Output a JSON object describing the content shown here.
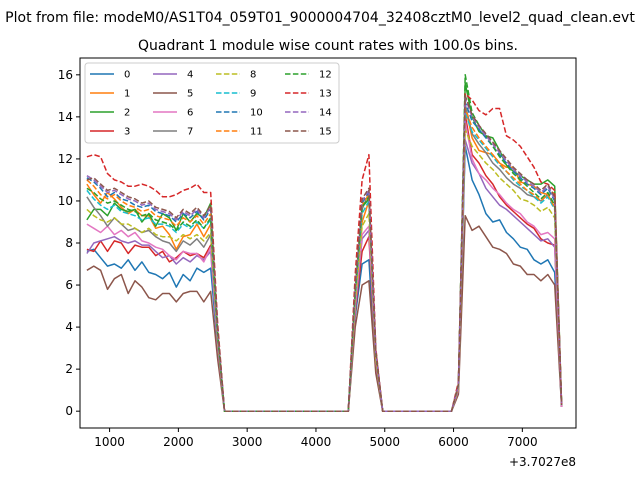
{
  "chart_data": {
    "type": "line",
    "suptitle": "Plot from file: modeM0/AS1T04_059T01_9000004704_32408cztM0_level2_quad_clean.evt",
    "title": "Quadrant 1 module wise count rates with 100.0s bins.",
    "xlabel": "",
    "ylabel": "",
    "x_offset_label": "+3.7027e8",
    "xlim": [
      570,
      7780
    ],
    "ylim": [
      -0.8,
      16.8
    ],
    "xticks": [
      1000,
      2000,
      3000,
      4000,
      5000,
      6000,
      7000
    ],
    "xtick_labels": [
      "1000",
      "2000",
      "3000",
      "4000",
      "5000",
      "6000",
      "7000"
    ],
    "yticks": [
      0,
      2,
      4,
      6,
      8,
      10,
      12,
      14,
      16
    ],
    "ytick_labels": [
      "0",
      "2",
      "4",
      "6",
      "8",
      "10",
      "12",
      "14",
      "16"
    ],
    "legend_location": "upper-left",
    "x": [
      670,
      770,
      870,
      970,
      1070,
      1170,
      1270,
      1370,
      1470,
      1570,
      1670,
      1770,
      1870,
      1970,
      2070,
      2170,
      2270,
      2370,
      2470,
      2570,
      2670,
      2770,
      2870,
      2970,
      3070,
      3170,
      3270,
      3370,
      3470,
      3570,
      3670,
      3770,
      3870,
      3970,
      4070,
      4170,
      4270,
      4370,
      4470,
      4570,
      4670,
      4770,
      4870,
      4970,
      5070,
      5170,
      5270,
      5370,
      5470,
      5570,
      5670,
      5770,
      5870,
      5970,
      6070,
      6170,
      6270,
      6370,
      6470,
      6570,
      6670,
      6770,
      6870,
      6970,
      7070,
      7170,
      7270,
      7370,
      7470,
      7570
    ],
    "series": [
      {
        "name": "0",
        "color": "#1f77b4",
        "dash": "solid",
        "values": [
          7.6,
          7.7,
          7.3,
          6.9,
          7.0,
          6.8,
          7.2,
          6.7,
          7.1,
          6.6,
          6.5,
          6.3,
          6.6,
          5.9,
          6.5,
          6.2,
          6.8,
          6.6,
          6.8,
          3.0,
          0,
          0,
          0,
          0,
          0,
          0,
          0,
          0,
          0,
          0,
          0,
          0,
          0,
          0,
          0,
          0,
          0,
          0,
          0,
          4.5,
          7.0,
          7.2,
          2.0,
          0,
          0,
          0,
          0,
          0,
          0,
          0,
          0,
          0,
          0,
          0,
          0.9,
          12.6,
          11.0,
          10.3,
          9.4,
          9.0,
          9.1,
          8.5,
          8.2,
          7.8,
          7.7,
          7.2,
          7.0,
          7.2,
          6.6,
          0.2
        ]
      },
      {
        "name": "1",
        "color": "#ff7f0e",
        "dash": "solid",
        "values": [
          10.8,
          10.3,
          9.9,
          10.4,
          10.1,
          9.7,
          9.4,
          9.6,
          9.3,
          9.3,
          8.7,
          8.8,
          8.4,
          7.7,
          8.3,
          8.4,
          8.9,
          8.3,
          8.9,
          3.5,
          0,
          0,
          0,
          0,
          0,
          0,
          0,
          0,
          0,
          0,
          0,
          0,
          0,
          0,
          0,
          0,
          0,
          0,
          0,
          5.3,
          9.0,
          10.0,
          2.6,
          0,
          0,
          0,
          0,
          0,
          0,
          0,
          0,
          0,
          0,
          0,
          1.1,
          14.5,
          13.0,
          12.4,
          12.3,
          12.2,
          11.8,
          11.6,
          11.6,
          10.9,
          10.8,
          10.7,
          10.4,
          10.3,
          10.4,
          0.3
        ]
      },
      {
        "name": "2",
        "color": "#2ca02c",
        "dash": "solid",
        "values": [
          9.1,
          9.6,
          9.6,
          9.3,
          9.9,
          9.6,
          9.5,
          9.6,
          9.0,
          9.4,
          8.8,
          9.4,
          9.2,
          8.6,
          9.4,
          9.0,
          9.4,
          9.2,
          9.9,
          3.8,
          0,
          0,
          0,
          0,
          0,
          0,
          0,
          0,
          0,
          0,
          0,
          0,
          0,
          0,
          0,
          0,
          0,
          0,
          0,
          5.7,
          9.7,
          10.1,
          2.8,
          0,
          0,
          0,
          0,
          0,
          0,
          0,
          0,
          0,
          0,
          0,
          1.2,
          15.6,
          14.0,
          13.3,
          13.1,
          13.0,
          12.4,
          11.7,
          11.4,
          11.2,
          11.0,
          10.8,
          10.8,
          11.0,
          10.7,
          0.3
        ]
      },
      {
        "name": "3",
        "color": "#d62728",
        "dash": "solid",
        "values": [
          7.7,
          7.6,
          8.1,
          7.6,
          8.1,
          8.0,
          7.5,
          7.9,
          7.8,
          7.8,
          7.4,
          7.6,
          7.1,
          7.3,
          7.6,
          7.4,
          7.5,
          7.3,
          7.9,
          3.2,
          0,
          0,
          0,
          0,
          0,
          0,
          0,
          0,
          0,
          0,
          0,
          0,
          0,
          0,
          0,
          0,
          0,
          0,
          0,
          4.7,
          7.6,
          8.3,
          2.2,
          0,
          0,
          0,
          0,
          0,
          0,
          0,
          0,
          0,
          0,
          0,
          1.0,
          14.1,
          12.2,
          11.8,
          11.2,
          10.8,
          10.2,
          9.8,
          9.5,
          9.2,
          8.9,
          8.7,
          8.2,
          8.0,
          7.9,
          0.2
        ]
      },
      {
        "name": "4",
        "color": "#9467bd",
        "dash": "solid",
        "values": [
          7.5,
          8.0,
          8.1,
          8.2,
          8.3,
          8.1,
          8.0,
          8.1,
          7.9,
          7.9,
          7.6,
          7.3,
          7.4,
          7.0,
          7.3,
          7.1,
          7.4,
          7.2,
          7.6,
          3.1,
          0,
          0,
          0,
          0,
          0,
          0,
          0,
          0,
          0,
          0,
          0,
          0,
          0,
          0,
          0,
          0,
          0,
          0,
          0,
          4.8,
          8.2,
          8.6,
          2.3,
          0,
          0,
          0,
          0,
          0,
          0,
          0,
          0,
          0,
          0,
          0,
          1.0,
          12.9,
          11.8,
          11.3,
          10.6,
          10.2,
          9.8,
          9.6,
          9.3,
          9.0,
          8.7,
          8.4,
          8.1,
          8.2,
          7.8,
          0.2
        ]
      },
      {
        "name": "5",
        "color": "#8c564b",
        "dash": "solid",
        "values": [
          6.7,
          6.9,
          6.7,
          5.8,
          6.3,
          6.5,
          5.6,
          6.2,
          5.9,
          5.4,
          5.3,
          5.6,
          5.6,
          5.2,
          5.6,
          5.7,
          5.7,
          5.2,
          5.7,
          2.5,
          0,
          0,
          0,
          0,
          0,
          0,
          0,
          0,
          0,
          0,
          0,
          0,
          0,
          0,
          0,
          0,
          0,
          0,
          0,
          4.0,
          6.0,
          6.2,
          1.8,
          0,
          0,
          0,
          0,
          0,
          0,
          0,
          0,
          0,
          0,
          0,
          0.8,
          9.3,
          8.6,
          8.8,
          8.3,
          7.8,
          7.7,
          7.5,
          7.0,
          6.9,
          6.5,
          6.5,
          6.2,
          6.5,
          6.0,
          0.2
        ]
      },
      {
        "name": "6",
        "color": "#e377c2",
        "dash": "solid",
        "values": [
          8.9,
          8.7,
          8.5,
          8.8,
          8.4,
          8.6,
          8.3,
          8.5,
          8.1,
          8.0,
          7.8,
          7.7,
          7.4,
          7.2,
          7.6,
          7.5,
          7.5,
          7.1,
          7.8,
          3.2,
          0,
          0,
          0,
          0,
          0,
          0,
          0,
          0,
          0,
          0,
          0,
          0,
          0,
          0,
          0,
          0,
          0,
          0,
          0,
          5.0,
          8.4,
          8.8,
          2.4,
          0,
          0,
          0,
          0,
          0,
          0,
          0,
          0,
          0,
          0,
          0,
          1.0,
          13.8,
          12.0,
          11.3,
          11.0,
          10.6,
          10.3,
          9.9,
          9.6,
          9.4,
          9.0,
          8.8,
          8.4,
          8.5,
          8.2,
          0.2
        ]
      },
      {
        "name": "7",
        "color": "#7f7f7f",
        "dash": "solid",
        "values": [
          10.2,
          9.7,
          9.3,
          8.8,
          9.2,
          8.9,
          8.6,
          8.7,
          8.5,
          8.6,
          8.3,
          8.1,
          8.0,
          7.6,
          8.1,
          7.9,
          8.2,
          7.8,
          8.4,
          3.4,
          0,
          0,
          0,
          0,
          0,
          0,
          0,
          0,
          0,
          0,
          0,
          0,
          0,
          0,
          0,
          0,
          0,
          0,
          0,
          5.4,
          9.6,
          10.4,
          2.6,
          0,
          0,
          0,
          0,
          0,
          0,
          0,
          0,
          0,
          0,
          0,
          1.1,
          14.6,
          13.2,
          12.7,
          12.3,
          11.8,
          11.5,
          11.1,
          10.8,
          10.6,
          10.3,
          10.2,
          10.0,
          10.3,
          9.7,
          0.3
        ]
      },
      {
        "name": "8",
        "color": "#bcbd22",
        "dash": "dashed",
        "values": [
          9.6,
          9.3,
          9.1,
          9.0,
          9.2,
          8.9,
          8.9,
          8.7,
          8.5,
          8.7,
          8.4,
          8.3,
          8.3,
          8.1,
          8.4,
          8.2,
          8.4,
          8.1,
          8.5,
          3.5,
          0,
          0,
          0,
          0,
          0,
          0,
          0,
          0,
          0,
          0,
          0,
          0,
          0,
          0,
          0,
          0,
          0,
          0,
          0,
          5.2,
          8.8,
          9.4,
          2.5,
          0,
          0,
          0,
          0,
          0,
          0,
          0,
          0,
          0,
          0,
          0,
          1.1,
          13.4,
          12.6,
          12.2,
          11.8,
          11.5,
          11.1,
          10.8,
          10.5,
          10.1,
          10.0,
          9.8,
          9.5,
          9.7,
          9.2,
          0.3
        ]
      },
      {
        "name": "9",
        "color": "#17becf",
        "dash": "dashed",
        "values": [
          10.5,
          10.1,
          9.8,
          9.6,
          9.8,
          9.5,
          9.4,
          9.3,
          9.1,
          9.2,
          8.9,
          8.9,
          8.8,
          8.5,
          8.9,
          8.7,
          9.0,
          8.7,
          9.1,
          3.7,
          0,
          0,
          0,
          0,
          0,
          0,
          0,
          0,
          0,
          0,
          0,
          0,
          0,
          0,
          0,
          0,
          0,
          0,
          0,
          5.6,
          9.4,
          10.0,
          2.7,
          0,
          0,
          0,
          0,
          0,
          0,
          0,
          0,
          0,
          0,
          0,
          1.2,
          14.2,
          13.3,
          12.9,
          12.5,
          12.1,
          11.7,
          11.4,
          11.0,
          10.7,
          10.5,
          10.2,
          9.9,
          10.2,
          9.6,
          0.3
        ]
      },
      {
        "name": "10",
        "color": "#1f77b4",
        "dash": "dashed",
        "values": [
          11.1,
          10.9,
          10.6,
          10.2,
          10.4,
          10.1,
          10.0,
          9.8,
          9.7,
          9.8,
          9.5,
          9.4,
          9.3,
          9.0,
          9.4,
          9.2,
          9.5,
          9.1,
          9.6,
          3.9,
          0,
          0,
          0,
          0,
          0,
          0,
          0,
          0,
          0,
          0,
          0,
          0,
          0,
          0,
          0,
          0,
          0,
          0,
          0,
          5.9,
          9.9,
          10.4,
          2.8,
          0,
          0,
          0,
          0,
          0,
          0,
          0,
          0,
          0,
          0,
          0,
          1.2,
          14.7,
          13.8,
          13.4,
          13.0,
          12.6,
          12.2,
          11.8,
          11.4,
          11.1,
          10.8,
          10.6,
          10.3,
          10.6,
          10.0,
          0.3
        ]
      },
      {
        "name": "11",
        "color": "#ff7f0e",
        "dash": "dashed",
        "values": [
          11.0,
          10.7,
          10.3,
          10.1,
          10.3,
          10.0,
          9.8,
          9.7,
          9.5,
          9.6,
          9.3,
          9.2,
          9.1,
          8.8,
          9.2,
          9.0,
          9.3,
          8.9,
          9.4,
          3.8,
          0,
          0,
          0,
          0,
          0,
          0,
          0,
          0,
          0,
          0,
          0,
          0,
          0,
          0,
          0,
          0,
          0,
          0,
          0,
          5.8,
          9.8,
          10.3,
          2.7,
          0,
          0,
          0,
          0,
          0,
          0,
          0,
          0,
          0,
          0,
          0,
          1.2,
          14.4,
          13.5,
          13.0,
          12.6,
          12.2,
          11.8,
          11.4,
          11.1,
          10.8,
          10.5,
          10.3,
          10.0,
          10.3,
          9.7,
          0.3
        ]
      },
      {
        "name": "12",
        "color": "#2ca02c",
        "dash": "dashed",
        "values": [
          10.6,
          10.4,
          10.1,
          9.9,
          10.0,
          9.8,
          9.6,
          9.5,
          9.3,
          9.4,
          9.1,
          9.0,
          8.9,
          8.6,
          9.0,
          8.8,
          9.1,
          8.7,
          9.2,
          3.7,
          0,
          0,
          0,
          0,
          0,
          0,
          0,
          0,
          0,
          0,
          0,
          0,
          0,
          0,
          0,
          0,
          0,
          0,
          0,
          5.7,
          9.7,
          10.2,
          2.7,
          0,
          0,
          0,
          0,
          0,
          0,
          0,
          0,
          0,
          0,
          0,
          1.2,
          16.0,
          14.2,
          13.6,
          13.1,
          12.6,
          12.1,
          11.7,
          11.3,
          11.0,
          10.7,
          10.4,
          10.1,
          10.4,
          9.8,
          0.3
        ]
      },
      {
        "name": "13",
        "color": "#d62728",
        "dash": "dashed",
        "values": [
          12.1,
          12.2,
          12.1,
          11.3,
          11.0,
          10.9,
          10.7,
          10.7,
          10.8,
          10.7,
          10.5,
          10.2,
          10.2,
          10.3,
          10.5,
          10.6,
          10.8,
          10.4,
          10.4,
          4.2,
          0,
          0,
          0,
          0,
          0,
          0,
          0,
          0,
          0,
          0,
          0,
          0,
          0,
          0,
          0,
          0,
          0,
          0,
          0,
          6.5,
          11.0,
          12.2,
          3.0,
          0,
          0,
          0,
          0,
          0,
          0,
          0,
          0,
          0,
          0,
          0,
          1.4,
          15.1,
          14.8,
          14.3,
          14.1,
          14.4,
          14.4,
          13.1,
          12.9,
          12.6,
          12.1,
          11.6,
          10.9,
          10.8,
          10.5,
          0.3
        ]
      },
      {
        "name": "14",
        "color": "#9467bd",
        "dash": "dashed",
        "values": [
          11.2,
          11.0,
          10.7,
          10.4,
          10.5,
          10.3,
          10.1,
          10.0,
          9.8,
          9.9,
          9.6,
          9.5,
          9.4,
          9.1,
          9.5,
          9.3,
          9.6,
          9.2,
          9.7,
          3.9,
          0,
          0,
          0,
          0,
          0,
          0,
          0,
          0,
          0,
          0,
          0,
          0,
          0,
          0,
          0,
          0,
          0,
          0,
          0,
          5.9,
          10.0,
          10.5,
          2.8,
          0,
          0,
          0,
          0,
          0,
          0,
          0,
          0,
          0,
          0,
          0,
          1.2,
          14.9,
          14.0,
          13.5,
          13.1,
          12.7,
          12.3,
          11.9,
          11.5,
          11.2,
          10.9,
          10.7,
          10.4,
          10.7,
          10.1,
          0.3
        ]
      },
      {
        "name": "15",
        "color": "#8c564b",
        "dash": "dashed",
        "values": [
          11.0,
          11.1,
          10.8,
          10.5,
          10.6,
          10.4,
          10.2,
          10.1,
          9.9,
          10.0,
          9.7,
          9.6,
          9.5,
          9.2,
          9.6,
          9.4,
          9.7,
          9.3,
          9.8,
          4.0,
          0,
          0,
          0,
          0,
          0,
          0,
          0,
          0,
          0,
          0,
          0,
          0,
          0,
          0,
          0,
          0,
          0,
          0,
          0,
          6.0,
          10.1,
          10.6,
          2.9,
          0,
          0,
          0,
          0,
          0,
          0,
          0,
          0,
          0,
          0,
          0,
          1.3,
          15.0,
          14.1,
          13.6,
          13.2,
          12.8,
          12.4,
          12.0,
          11.6,
          11.3,
          11.0,
          10.8,
          10.5,
          10.8,
          10.2,
          0.3
        ]
      }
    ]
  }
}
